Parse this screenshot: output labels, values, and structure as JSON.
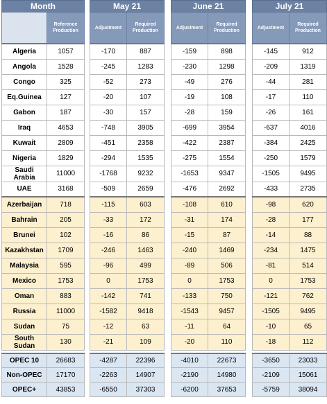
{
  "header": {
    "month": "Month",
    "periods": [
      "May 21",
      "June 21",
      "July 21"
    ],
    "subheaders": [
      "Reference Production",
      "Adjustment",
      "Required Production",
      "Adjustment",
      "Required Production",
      "Adjustment",
      "Required Production"
    ]
  },
  "sections": [
    {
      "rows": [
        [
          "Algeria",
          1057,
          -170,
          887,
          -159,
          898,
          -145,
          912
        ],
        [
          "Angola",
          1528,
          -245,
          1283,
          -230,
          1298,
          -209,
          1319
        ],
        [
          "Congo",
          325,
          -52,
          273,
          -49,
          276,
          -44,
          281
        ],
        [
          "Eq.Guinea",
          127,
          -20,
          107,
          -19,
          108,
          -17,
          110
        ],
        [
          "Gabon",
          187,
          -30,
          157,
          -28,
          159,
          -26,
          161
        ],
        [
          "Iraq",
          4653,
          -748,
          3905,
          -699,
          3954,
          -637,
          4016
        ],
        [
          "Kuwait",
          2809,
          -451,
          2358,
          -422,
          2387,
          -384,
          2425
        ],
        [
          "Nigeria",
          1829,
          -294,
          1535,
          -275,
          1554,
          -250,
          1579
        ],
        [
          "Saudi Arabia",
          11000,
          -1768,
          9232,
          -1653,
          9347,
          -1505,
          9495
        ],
        [
          "UAE",
          3168,
          -509,
          2659,
          -476,
          2692,
          -433,
          2735
        ]
      ]
    },
    {
      "rows": [
        [
          "Azerbaijan",
          718,
          -115,
          603,
          -108,
          610,
          -98,
          620
        ],
        [
          "Bahrain",
          205,
          -33,
          172,
          -31,
          174,
          -28,
          177
        ],
        [
          "Brunei",
          102,
          -16,
          86,
          -15,
          87,
          -14,
          88
        ],
        [
          "Kazakhstan",
          1709,
          -246,
          1463,
          -240,
          1469,
          -234,
          1475
        ],
        [
          "Malaysia",
          595,
          -96,
          499,
          -89,
          506,
          -81,
          514
        ],
        [
          "Mexico",
          1753,
          0,
          1753,
          0,
          1753,
          0,
          1753
        ],
        [
          "Oman",
          883,
          -142,
          741,
          -133,
          750,
          -121,
          762
        ],
        [
          "Russia",
          11000,
          -1582,
          9418,
          -1543,
          9457,
          -1505,
          9495
        ],
        [
          "Sudan",
          75,
          -12,
          63,
          -11,
          64,
          -10,
          65
        ],
        [
          "South Sudan",
          130,
          -21,
          109,
          -20,
          110,
          -18,
          112
        ]
      ]
    },
    {
      "rows": [
        [
          "OPEC 10",
          26683,
          -4287,
          22396,
          -4010,
          22673,
          -3650,
          23033
        ],
        [
          "Non-OPEC",
          17170,
          -2263,
          14907,
          -2190,
          14980,
          -2109,
          15061
        ],
        [
          "OPEC+",
          43853,
          -6550,
          37303,
          -6200,
          37653,
          -5759,
          38094
        ]
      ]
    }
  ]
}
